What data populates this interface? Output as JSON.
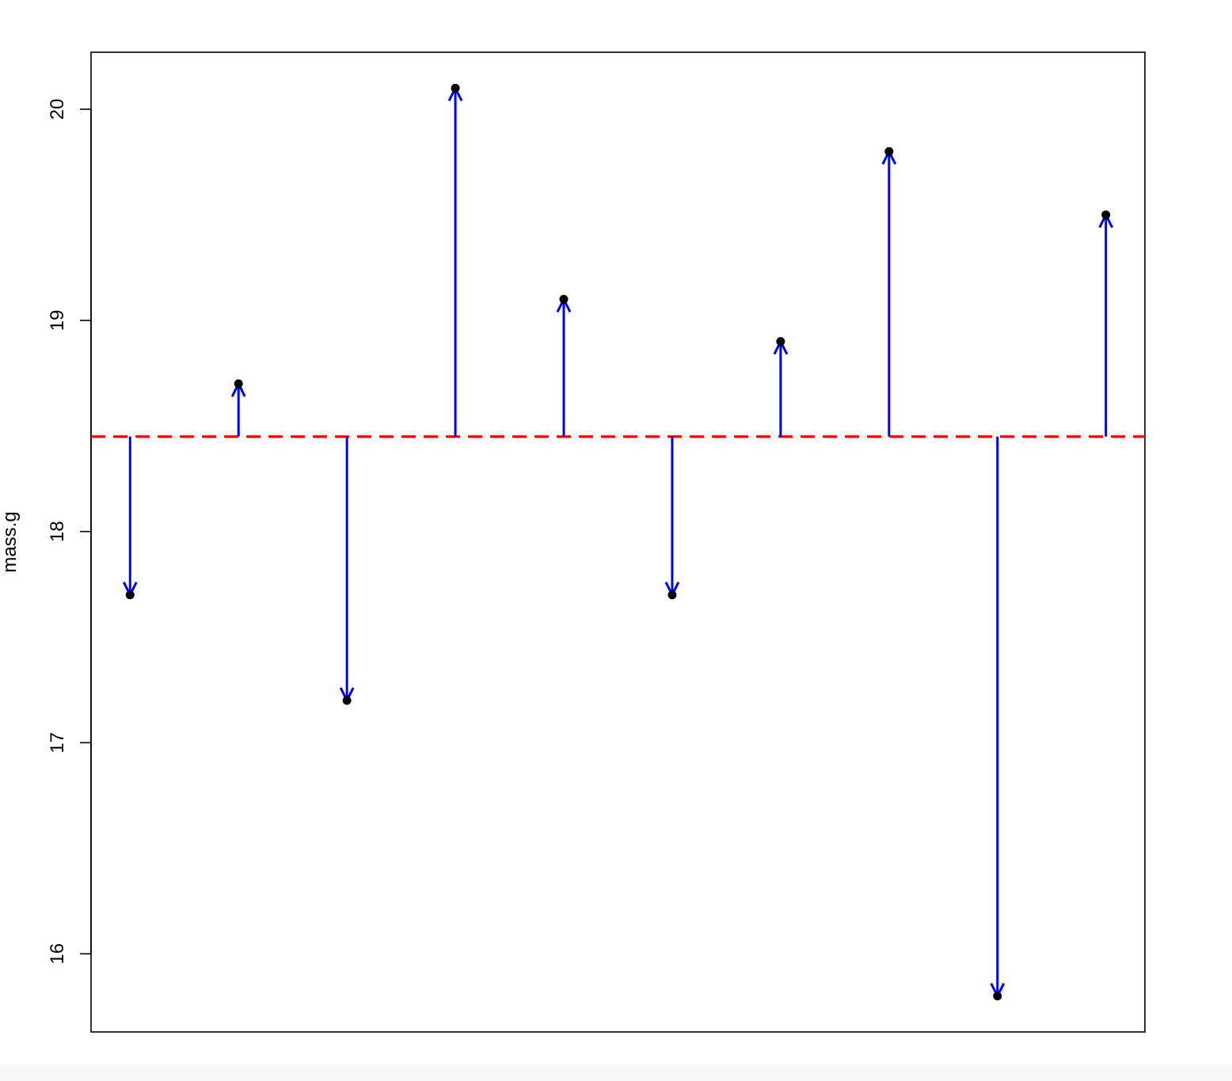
{
  "chart_data": {
    "type": "scatter",
    "title": "",
    "xlabel": "",
    "ylabel": "mass.g",
    "x": [
      1,
      2,
      3,
      4,
      5,
      6,
      7,
      8,
      9,
      10
    ],
    "y": [
      17.7,
      18.7,
      17.2,
      20.1,
      19.1,
      17.7,
      18.9,
      19.8,
      15.8,
      19.5
    ],
    "mean_line": 18.45,
    "xlim": [
      0.64,
      10.36
    ],
    "ylim": [
      15.63,
      20.27
    ],
    "y_ticks": [
      16,
      17,
      18,
      19,
      20
    ],
    "y_tick_labels": [
      "16",
      "17",
      "18",
      "19",
      "20"
    ],
    "show_x_axis_ticks": false,
    "grid": false,
    "colors": {
      "points": "#000000",
      "arrows": "#0000ff",
      "mean_line": "#ff0000",
      "frame": "#000000"
    }
  }
}
